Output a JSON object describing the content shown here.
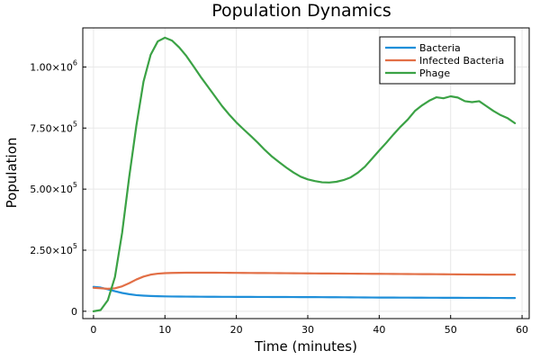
{
  "chart_data": {
    "type": "line",
    "title": "Population Dynamics",
    "xlabel": "Time (minutes)",
    "ylabel": "Population",
    "xlim": [
      -1.5,
      61
    ],
    "ylim": [
      -30000,
      1160000
    ],
    "xticks": [
      0,
      10,
      20,
      30,
      40,
      50,
      60
    ],
    "xtick_labels": [
      "0",
      "10",
      "20",
      "30",
      "40",
      "50",
      "60"
    ],
    "yticks": [
      0,
      250000,
      500000,
      750000,
      1000000
    ],
    "ytick_labels": [
      {
        "mantissa": "0",
        "exp": ""
      },
      {
        "mantissa": "2.50×10",
        "exp": "5"
      },
      {
        "mantissa": "5.00×10",
        "exp": "5"
      },
      {
        "mantissa": "7.50×10",
        "exp": "5"
      },
      {
        "mantissa": "1.00×10",
        "exp": "6"
      }
    ],
    "grid": true,
    "legend_position": "top-right",
    "x": [
      0,
      1,
      2,
      3,
      4,
      5,
      6,
      7,
      8,
      9,
      10,
      11,
      12,
      13,
      14,
      15,
      16,
      17,
      18,
      19,
      20,
      21,
      22,
      23,
      24,
      25,
      26,
      27,
      28,
      29,
      30,
      31,
      32,
      33,
      34,
      35,
      36,
      37,
      38,
      39,
      40,
      41,
      42,
      43,
      44,
      45,
      46,
      47,
      48,
      49,
      50,
      51,
      52,
      53,
      54,
      55,
      56,
      57,
      58,
      59
    ],
    "series": [
      {
        "name": "Bacteria",
        "color": "#1f8fd9",
        "values": [
          100000,
          97000,
          90000,
          82000,
          75000,
          70000,
          66000,
          64000,
          62500,
          61500,
          61000,
          60500,
          60200,
          60000,
          59800,
          59600,
          59400,
          59300,
          59200,
          59100,
          59000,
          58900,
          58800,
          58700,
          58600,
          58500,
          58400,
          58300,
          58200,
          58100,
          58000,
          57900,
          57800,
          57600,
          57400,
          57200,
          57000,
          56800,
          56600,
          56400,
          56200,
          56100,
          56000,
          55900,
          55800,
          55700,
          55600,
          55500,
          55400,
          55300,
          55200,
          55100,
          55000,
          54900,
          54800,
          54700,
          54600,
          54500,
          54400,
          54300
        ]
      },
      {
        "name": "Infected Bacteria",
        "color": "#e26f46",
        "values": [
          96000,
          94000,
          92000,
          94000,
          102000,
          115000,
          130000,
          142000,
          150000,
          154000,
          156000,
          157000,
          157500,
          158000,
          158000,
          158000,
          158000,
          157800,
          157600,
          157400,
          157200,
          157000,
          156800,
          156600,
          156400,
          156200,
          156000,
          155800,
          155600,
          155400,
          155200,
          155000,
          154800,
          154600,
          154400,
          154200,
          154000,
          153800,
          153600,
          153400,
          153200,
          153000,
          152800,
          152600,
          152400,
          152200,
          152000,
          151800,
          151600,
          151400,
          151200,
          151000,
          150800,
          150600,
          150400,
          150200,
          150000,
          150000,
          150000,
          150000
        ]
      },
      {
        "name": "Phage",
        "color": "#3ba245",
        "values": [
          0,
          5000,
          45000,
          140000,
          320000,
          550000,
          760000,
          940000,
          1050000,
          1105000,
          1120000,
          1108000,
          1080000,
          1045000,
          1003000,
          960000,
          920000,
          880000,
          840000,
          805000,
          773000,
          745000,
          718000,
          690000,
          660000,
          633000,
          610000,
          588000,
          568000,
          551000,
          540000,
          533000,
          528000,
          527000,
          530000,
          537000,
          548000,
          567000,
          592000,
          625000,
          658000,
          690000,
          724000,
          756000,
          785000,
          820000,
          843000,
          862000,
          876000,
          872000,
          880000,
          875000,
          860000,
          856000,
          860000,
          840000,
          820000,
          803000,
          790000,
          770000
        ]
      }
    ]
  }
}
